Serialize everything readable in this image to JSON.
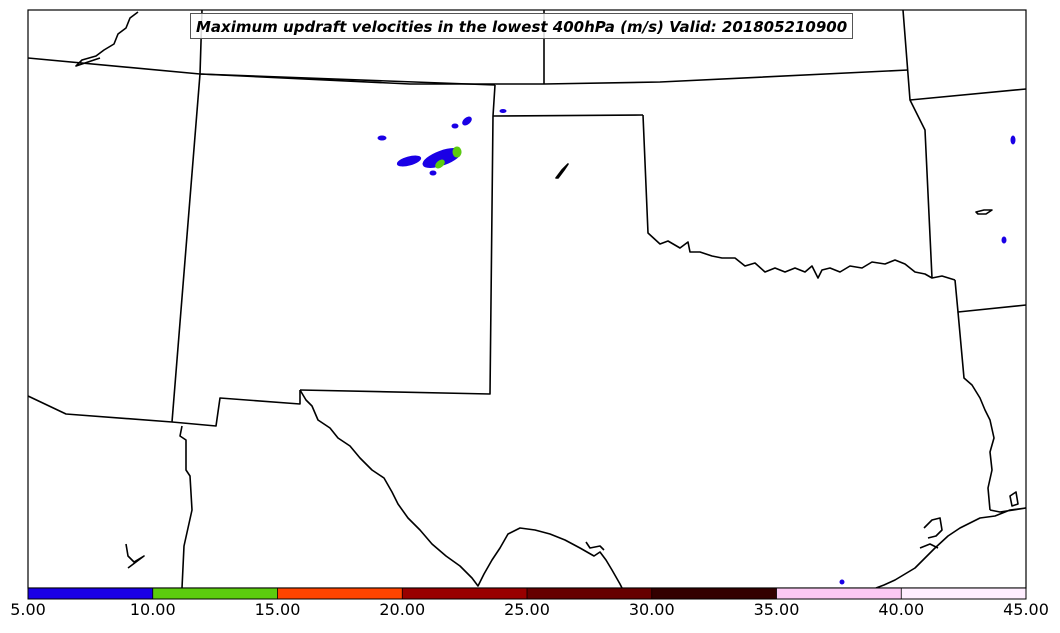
{
  "title": "Maximum updraft velocities in the lowest 400hPa (m/s) Valid: 201805210900",
  "colorbar": {
    "ticks": [
      "5.00",
      "10.00",
      "15.00",
      "20.00",
      "25.00",
      "30.00",
      "35.00",
      "40.00",
      "45.00"
    ],
    "min": 5,
    "max": 45,
    "bins": [
      {
        "from": 5,
        "to": 10,
        "color": "#1a00e6"
      },
      {
        "from": 10,
        "to": 15,
        "color": "#5ccc0e"
      },
      {
        "from": 15,
        "to": 20,
        "color": "#ff4400"
      },
      {
        "from": 20,
        "to": 25,
        "color": "#990000"
      },
      {
        "from": 25,
        "to": 30,
        "color": "#660000"
      },
      {
        "from": 30,
        "to": 35,
        "color": "#330000"
      },
      {
        "from": 35,
        "to": 40,
        "color": "#fcc8f3"
      },
      {
        "from": 40,
        "to": 45,
        "color": "#ffeeff"
      }
    ]
  },
  "colors": {
    "boundary": "#000000",
    "frame": "#000000",
    "updraft_low": "#1a00e6",
    "updraft_mid": "#5ccc0e"
  }
}
